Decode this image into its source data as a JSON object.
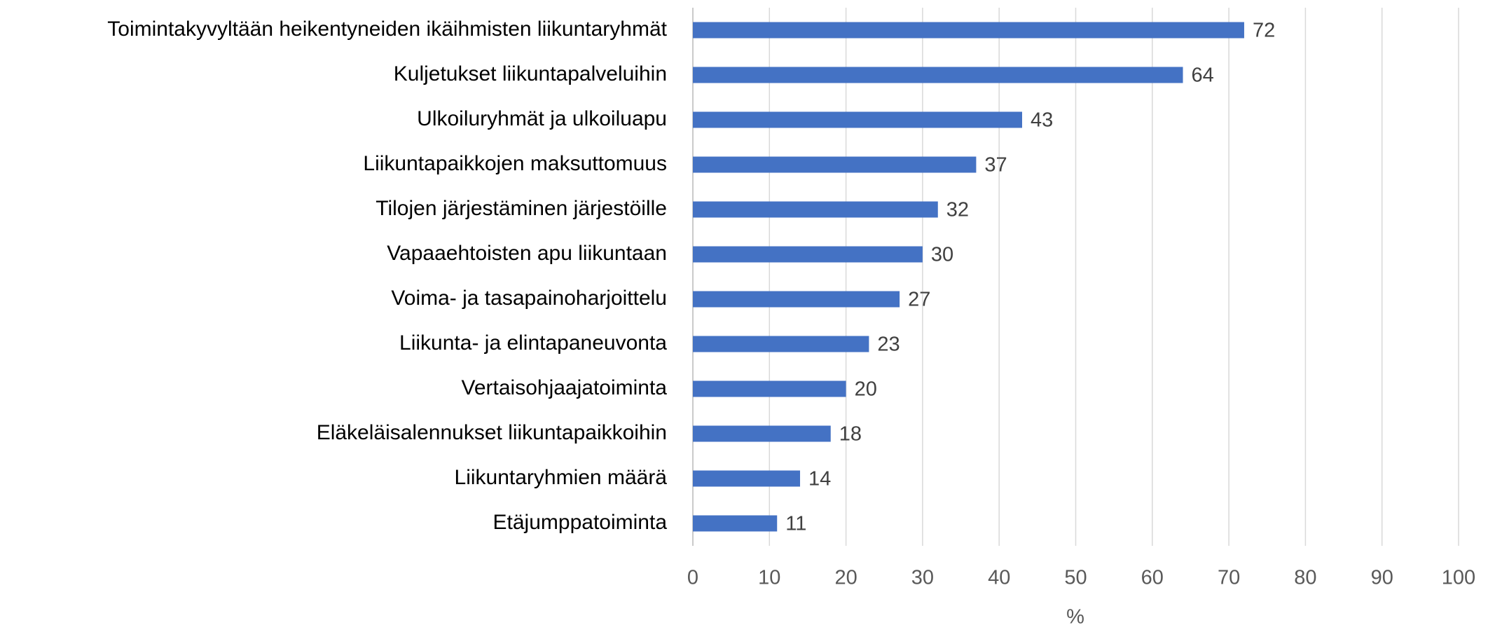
{
  "chart_data": {
    "type": "bar",
    "orientation": "horizontal",
    "categories": [
      "Toimintakyvyltään heikentyneiden ikäihmisten liikuntaryhmät",
      "Kuljetukset liikuntapalveluihin",
      "Ulkoiluryhmät ja ulkoiluapu",
      "Liikuntapaikkojen maksuttomuus",
      "Tilojen järjestäminen järjestöille",
      "Vapaaehtoisten apu liikuntaan",
      "Voima- ja tasapainoharjoittelu",
      "Liikunta- ja elintapaneuvonta",
      "Vertaisohjaajatoiminta",
      "Eläkeläisalennukset liikuntapaikkoihin",
      "Liikuntaryhmien määrä",
      "Etäjumppatoiminta"
    ],
    "values": [
      72,
      64,
      43,
      37,
      32,
      30,
      27,
      23,
      20,
      18,
      14,
      11
    ],
    "color": "#4472c4",
    "x_label": "%",
    "xlim": [
      0,
      100
    ],
    "xticks": [
      0,
      10,
      20,
      30,
      40,
      50,
      60,
      70,
      80,
      90,
      100
    ],
    "grid": true
  }
}
